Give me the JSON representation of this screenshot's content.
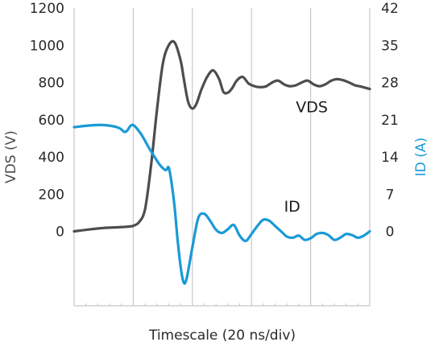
{
  "chart_data": {
    "type": "line",
    "title": "",
    "xlabel": "Timescale (20 ns/div)",
    "ylabel_left": "VDS (V)",
    "ylabel_right": "ID (A)",
    "ylim_left": [
      -400,
      1200
    ],
    "yticks_left": [
      0,
      200,
      400,
      600,
      800,
      1000,
      1200
    ],
    "ylim_right": [
      -14,
      42
    ],
    "yticks_right": [
      0,
      7,
      14,
      21,
      28,
      35,
      42
    ],
    "xlim": [
      0,
      100
    ],
    "x_divisions": 5,
    "grid": "vertical only",
    "legend": "none",
    "annotations": [
      {
        "text": "VDS",
        "series": "VDS"
      },
      {
        "text": "ID",
        "series": "ID"
      }
    ],
    "colors": {
      "VDS": "#4d4d4d",
      "ID": "#1a9ad6",
      "axis": "#c8c8c8",
      "text": "#2a2a2a"
    },
    "series": [
      {
        "name": "VDS",
        "axis": "left",
        "x": [
          0,
          5,
          10,
          15,
          18,
          20,
          22,
          24,
          26,
          28,
          30,
          32,
          34,
          36,
          37,
          38.5,
          40,
          41.5,
          43,
          45,
          47,
          49,
          50.5,
          52,
          53.5,
          55,
          57,
          59,
          61,
          63,
          65,
          67,
          69,
          71,
          73,
          75,
          77,
          79,
          81,
          83,
          85,
          87,
          89,
          91,
          93,
          95,
          97,
          100
        ],
        "values": [
          0,
          10,
          18,
          22,
          25,
          30,
          50,
          120,
          350,
          650,
          900,
          1000,
          1015,
          920,
          830,
          700,
          660,
          690,
          760,
          830,
          865,
          820,
          750,
          745,
          770,
          810,
          830,
          795,
          780,
          775,
          780,
          800,
          810,
          790,
          780,
          785,
          800,
          810,
          790,
          780,
          790,
          810,
          818,
          812,
          800,
          785,
          778,
          765
        ]
      },
      {
        "name": "ID",
        "axis": "right",
        "x": [
          0,
          5,
          10,
          15,
          17,
          18,
          19,
          20,
          21,
          23,
          25,
          27,
          29,
          31,
          32,
          33,
          34,
          35,
          36,
          37,
          38,
          40,
          42,
          44,
          46,
          48,
          50,
          52,
          54,
          56,
          58,
          60,
          62,
          64,
          66,
          68,
          70,
          72,
          74,
          76,
          78,
          80,
          82,
          84,
          86,
          88,
          90,
          92,
          94,
          96,
          98,
          100
        ],
        "values": [
          19.6,
          19.9,
          20.0,
          19.5,
          18.7,
          19.0,
          19.8,
          20.0,
          19.5,
          18.0,
          16.0,
          14.2,
          12.5,
          11.5,
          12.0,
          9.0,
          4.5,
          -1.5,
          -6.5,
          -9.5,
          -9.0,
          -3.0,
          2.5,
          3.3,
          2.0,
          0.3,
          -0.3,
          0.4,
          1.2,
          -0.8,
          -1.8,
          -0.5,
          1.0,
          2.2,
          2.0,
          1.0,
          0.0,
          -1.0,
          -1.2,
          -0.8,
          -1.6,
          -1.3,
          -0.5,
          -0.3,
          -0.7,
          -1.6,
          -1.2,
          -0.5,
          -0.7,
          -1.2,
          -0.8,
          0.0
        ]
      }
    ]
  }
}
